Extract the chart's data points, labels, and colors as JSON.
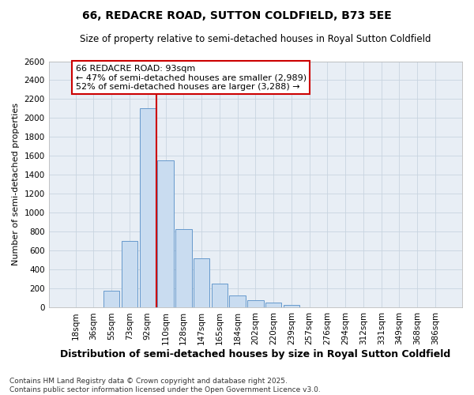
{
  "title": "66, REDACRE ROAD, SUTTON COLDFIELD, B73 5EE",
  "subtitle": "Size of property relative to semi-detached houses in Royal Sutton Coldfield",
  "xlabel": "Distribution of semi-detached houses by size in Royal Sutton Coldfield",
  "ylabel": "Number of semi-detached properties",
  "categories": [
    "18sqm",
    "36sqm",
    "55sqm",
    "73sqm",
    "92sqm",
    "110sqm",
    "128sqm",
    "147sqm",
    "165sqm",
    "184sqm",
    "202sqm",
    "220sqm",
    "239sqm",
    "257sqm",
    "276sqm",
    "294sqm",
    "312sqm",
    "331sqm",
    "349sqm",
    "368sqm",
    "386sqm"
  ],
  "values": [
    5,
    5,
    175,
    700,
    2100,
    1550,
    825,
    520,
    255,
    130,
    75,
    55,
    30,
    5,
    5,
    5,
    5,
    5,
    5,
    5,
    5
  ],
  "bar_color": "#c9dcf0",
  "bar_edge_color": "#6699cc",
  "red_line_after_index": 4,
  "annotation_text": "66 REDACRE ROAD: 93sqm\n← 47% of semi-detached houses are smaller (2,989)\n52% of semi-detached houses are larger (3,288) →",
  "annotation_box_color": "#ffffff",
  "annotation_box_edge": "#cc0000",
  "red_line_color": "#cc0000",
  "grid_color": "#c8d4e0",
  "background_color": "#e8eef5",
  "ylim": [
    0,
    2600
  ],
  "yticks": [
    0,
    200,
    400,
    600,
    800,
    1000,
    1200,
    1400,
    1600,
    1800,
    2000,
    2200,
    2400,
    2600
  ],
  "footnote": "Contains HM Land Registry data © Crown copyright and database right 2025.\nContains public sector information licensed under the Open Government Licence v3.0.",
  "title_fontsize": 10,
  "subtitle_fontsize": 8.5,
  "xlabel_fontsize": 9,
  "ylabel_fontsize": 8,
  "tick_fontsize": 7.5,
  "annotation_fontsize": 8,
  "footnote_fontsize": 6.5
}
